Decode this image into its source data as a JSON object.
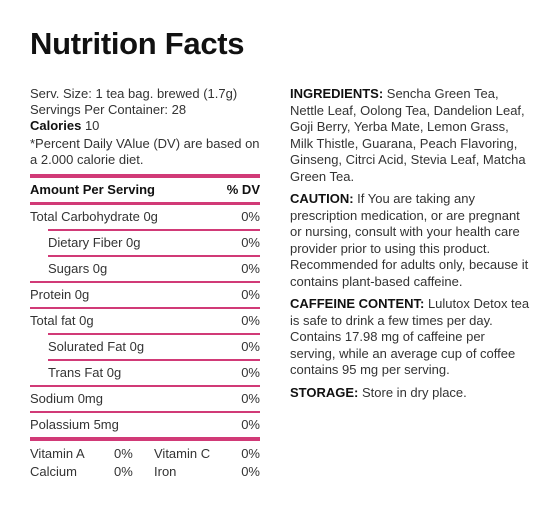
{
  "title": "Nutrition Facts",
  "serving": {
    "size": "Serv. Size: 1 tea bag. brewed (1.7g)",
    "per_container": "Servings Per Container: 28",
    "calories_label": "Calories",
    "calories_value": "10",
    "dv_note": "*Percent Daily VAlue (DV) are based on a 2.000 calorie diet."
  },
  "table": {
    "header_label": "Amount Per Serving",
    "header_dv": "% DV",
    "rows": [
      {
        "label": "Total Carbohydrate 0g",
        "dv": "0%"
      },
      {
        "label": "Dietary Fiber 0g",
        "dv": "0%"
      },
      {
        "label": "Sugars 0g",
        "dv": "0%"
      },
      {
        "label": "Protein 0g",
        "dv": "0%"
      },
      {
        "label": "Total fat 0g",
        "dv": "0%"
      },
      {
        "label": "Solurated Fat 0g",
        "dv": "0%"
      },
      {
        "label": "Trans Fat 0g",
        "dv": "0%"
      },
      {
        "label": "Sodium 0mg",
        "dv": "0%"
      },
      {
        "label": "Polassium 5mg",
        "dv": "0%"
      }
    ]
  },
  "vitamins": [
    {
      "label": "Vitamin A",
      "dv": "0%"
    },
    {
      "label": "Vitamin C",
      "dv": "0%"
    },
    {
      "label": "Calcium",
      "dv": "0%"
    },
    {
      "label": "Iron",
      "dv": "0%"
    }
  ],
  "ingredients": {
    "label": "INGREDIENTS:",
    "text": " Sencha Green Tea, Nettle Leaf, Oolong Tea, Dandelion Leaf, Goji Berry, Yerba Mate, Lemon Grass, Milk Thistle, Guarana, Peach Flavoring, Ginseng, Citrci Acid, Stevia Leaf, Matcha Green Tea."
  },
  "caution": {
    "label": "CAUTION:",
    "text": " If You are taking any prescription medication, or are pregnant or nursing, consult with your health care provider prior to using this product. Recommended for adults only, because it contains plant-based caffeine."
  },
  "caffeine": {
    "label": "CAFFEINE CONTENT:",
    "text": " Lulutox Detox tea is safe to drink a few times per day. Contains 17.98 mg of caffeine per serving, while an average cup of coffee contains 95 mg per serving."
  },
  "storage": {
    "label": "STORAGE:",
    "text": " Store in dry place."
  },
  "colors": {
    "accent": "#d13a77",
    "text": "#333333"
  }
}
